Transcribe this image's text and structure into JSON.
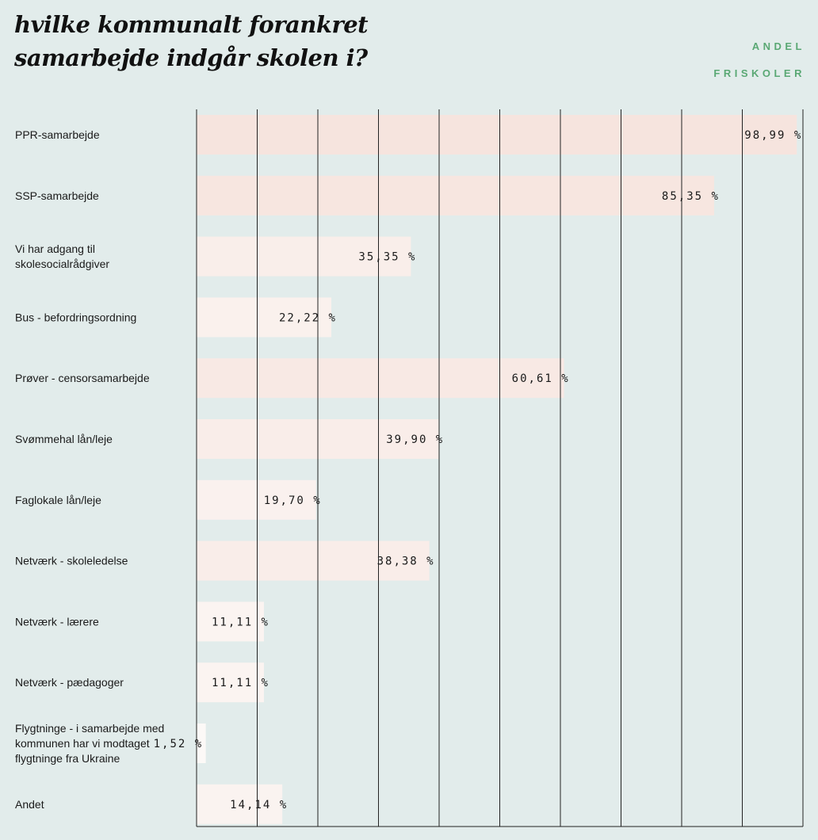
{
  "title": "hvilke kommunalt forankret samarbejde indgår skolen i?",
  "brand": {
    "line1": "ANDEL",
    "line2": "FRISKOLER",
    "color": "#5aa874"
  },
  "colors": {
    "background": "#e2eceb",
    "bar_high": "#f6e4de",
    "bar_low": "#fdfcfb",
    "gridline": "#222222"
  },
  "chart_data": {
    "type": "bar",
    "orientation": "horizontal",
    "categories": [
      [
        "PPR-samarbejde"
      ],
      [
        "SSP-samarbejde"
      ],
      [
        "Vi har adgang til",
        "skolesocialrådgiver"
      ],
      [
        "Bus - befordringsordning"
      ],
      [
        "Prøver - censorsamarbejde"
      ],
      [
        "Svømmehal lån/leje"
      ],
      [
        "Faglokale lån/leje"
      ],
      [
        "Netværk - skoleledelse"
      ],
      [
        "Netværk - lærere"
      ],
      [
        "Netværk - pædagoger"
      ],
      [
        "Flygtninge - i samarbejde med",
        "kommunen har vi modtaget",
        "flygtninge fra Ukraine"
      ],
      [
        "Andet"
      ]
    ],
    "values": [
      98.99,
      85.35,
      35.35,
      22.22,
      60.61,
      39.9,
      19.7,
      38.38,
      11.11,
      11.11,
      1.52,
      14.14
    ],
    "value_labels": [
      "98,99 %",
      "85,35 %",
      "35,35 %",
      "22,22 %",
      "60,61 %",
      "39,90 %",
      "19,70 %",
      "38,38 %",
      "11,11 %",
      "11,11 %",
      "1,52 %",
      "14,14 %"
    ],
    "xlim": [
      0,
      100
    ],
    "grid": true,
    "tick_labels": false
  }
}
